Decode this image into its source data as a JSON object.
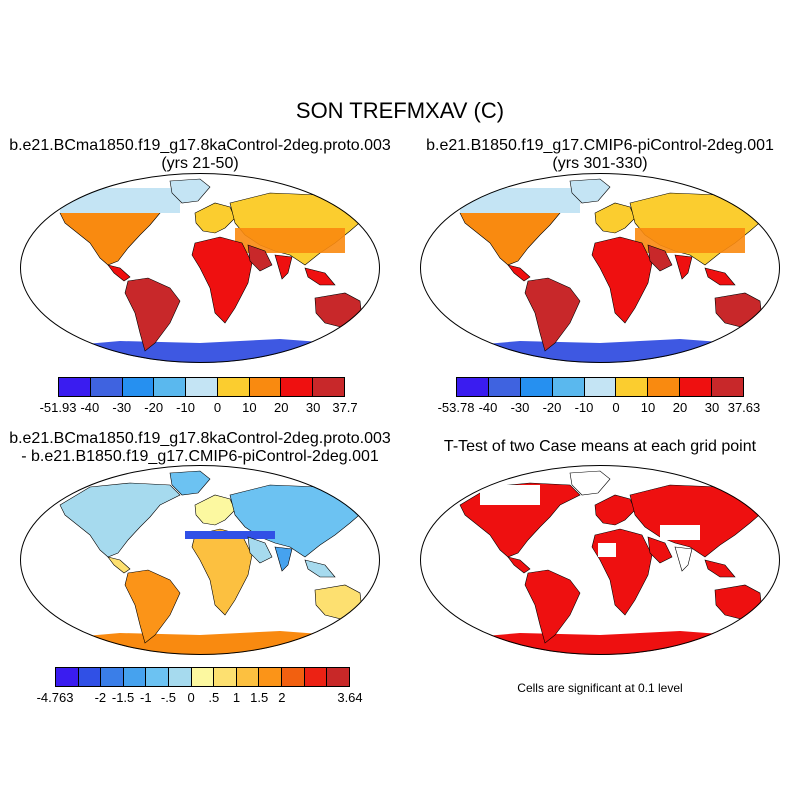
{
  "title": "SON TREFMXAV (C)",
  "panels": {
    "p1": {
      "line1": "b.e21.BCma1850.f19_g17.8kaControl-2deg.proto.003",
      "line2": "(yrs 21-50)"
    },
    "p2": {
      "line1": "b.e21.B1850.f19_g17.CMIP6-piControl-2deg.001",
      "line2": "(yrs 301-330)"
    },
    "p3": {
      "line1": "b.e21.BCma1850.f19_g17.8kaControl-2deg.proto.003",
      "line2": "- b.e21.B1850.f19_g17.CMIP6-piControl-2deg.001"
    },
    "p4": {
      "line1": "T-Test of two Case means at each grid point",
      "note": "Cells are significant at 0.1 level"
    }
  },
  "colorbars": {
    "cb1": {
      "colors": [
        "#3a1cf0",
        "#3f63e0",
        "#2690f0",
        "#5ab8ee",
        "#c4e4f4",
        "#fbcd2f",
        "#f98a10",
        "#ef1010",
        "#c8282a"
      ],
      "labels": [
        "-51.93",
        "-40",
        "-30",
        "-20",
        "-10",
        "0",
        "10",
        "20",
        "30",
        "37.7"
      ]
    },
    "cb2": {
      "colors": [
        "#3a1cf0",
        "#3f63e0",
        "#2690f0",
        "#5ab8ee",
        "#c4e4f4",
        "#fbcd2f",
        "#f98a10",
        "#ef1010",
        "#c8282a"
      ],
      "labels": [
        "-53.78",
        "-40",
        "-30",
        "-20",
        "-10",
        "0",
        "10",
        "20",
        "30",
        "37.63"
      ]
    },
    "cb3": {
      "colors": [
        "#3a1cf0",
        "#3050e6",
        "#3a7ee8",
        "#46a2ee",
        "#6cc2f2",
        "#a6daee",
        "#fcf8a0",
        "#fde070",
        "#fcc040",
        "#fb9418",
        "#f26010",
        "#ec2214",
        "#c82828"
      ],
      "labels": [
        "-4.763",
        "-2",
        "-1.5",
        "-1",
        "-.5",
        "0",
        ".5",
        "1",
        "1.5",
        "2",
        "3.64"
      ],
      "label_slots": [
        0,
        2,
        3,
        4,
        5,
        6,
        7,
        8,
        9,
        10,
        13
      ]
    }
  },
  "map_colors": {
    "antarctica": "#3e58e2",
    "greenland": "#c4e4f4",
    "tropics": "#ef1010",
    "hot_core": "#c8282a",
    "arid_mid": "#f98a10",
    "cold_band": "#fbcd2f",
    "diff_antarctica": "#f98a10",
    "diff_base": "#a6daee",
    "ttest": "#ee1010"
  }
}
